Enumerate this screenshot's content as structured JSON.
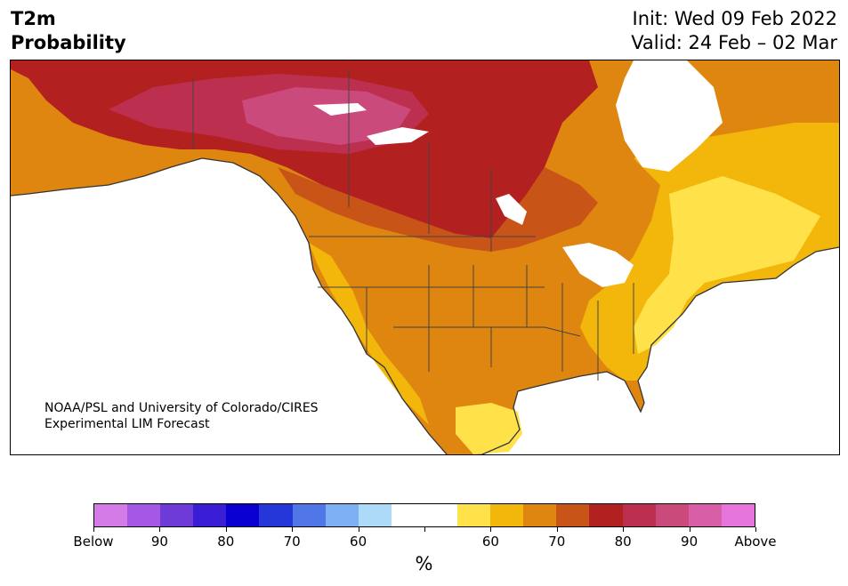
{
  "header": {
    "title_line1": "T2m",
    "title_line2": "Probability",
    "init": "Init: Wed 09 Feb 2022",
    "valid": "Valid: 24 Feb – 02 Mar"
  },
  "map": {
    "credit_line1": "NOAA/PSL and University of Colorado/CIRES",
    "credit_line2": "Experimental LIM Forecast"
  },
  "colorbar": {
    "colors": [
      "#d57be8",
      "#a458e3",
      "#6e3ad8",
      "#3a1ed6",
      "#0a00d0",
      "#2637d9",
      "#5176e6",
      "#7db0f2",
      "#acdaf8",
      "#ffffff",
      "#ffffff",
      "#ffe24a",
      "#f2b70a",
      "#de8610",
      "#c85418",
      "#b2211f",
      "#bd2f4f",
      "#cb4a7c",
      "#d75ea7",
      "#e776dc"
    ],
    "tick_labels": [
      "Below",
      "90",
      "80",
      "70",
      "60",
      "",
      "60",
      "70",
      "80",
      "90",
      "Above"
    ],
    "unit": "%"
  }
}
